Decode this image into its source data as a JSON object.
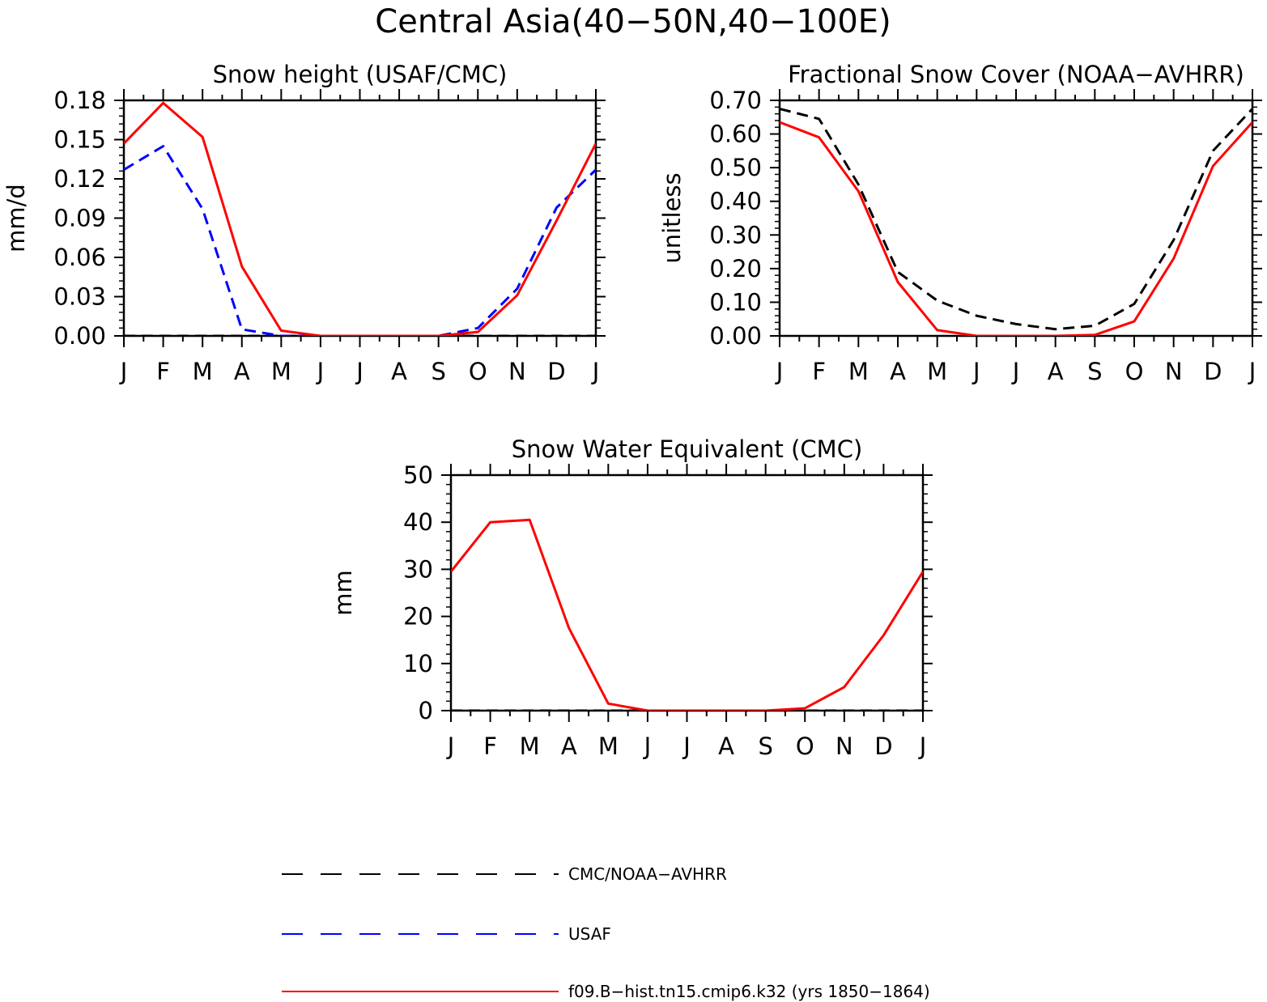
{
  "figure": {
    "title": "Central Asia(40−50N,40−100E)"
  },
  "legend": [
    {
      "label": "CMC/NOAA−AVHRR",
      "color": "#000000",
      "dash": "dashed"
    },
    {
      "label": "USAF",
      "color": "#0000ff",
      "dash": "dashed"
    },
    {
      "label": "f09.B−hist.tn15.cmip6.k32 (yrs 1850−1864)",
      "color": "#ff0000",
      "dash": "solid"
    }
  ],
  "chart_data": [
    {
      "type": "line",
      "title": "Snow height (USAF/CMC)",
      "ylabel": "mm/d",
      "xlabel": "",
      "categories": [
        "J",
        "F",
        "M",
        "A",
        "M",
        "J",
        "J",
        "A",
        "S",
        "O",
        "N",
        "D",
        "J"
      ],
      "ylim": [
        0,
        0.18
      ],
      "yticks": [
        "0.00",
        "0.03",
        "0.06",
        "0.09",
        "0.12",
        "0.15",
        "0.18"
      ],
      "series": [
        {
          "name": "CMC/NOAA−AVHRR",
          "color": "#000000",
          "dash": "dashed",
          "values": [
            0,
            0,
            0,
            0,
            0,
            0,
            0,
            0,
            0,
            0,
            0,
            0,
            0
          ]
        },
        {
          "name": "USAF",
          "color": "#0000ff",
          "dash": "dashed",
          "values": [
            0.127,
            0.145,
            0.097,
            0.005,
            0,
            0,
            0,
            0,
            0,
            0.006,
            0.036,
            0.098,
            0.127
          ]
        },
        {
          "name": "f09.B−hist.tn15.cmip6.k32 (yrs 1850−1864)",
          "color": "#ff0000",
          "dash": "solid",
          "values": [
            0.147,
            0.178,
            0.152,
            0.053,
            0.004,
            0,
            0,
            0,
            0,
            0.003,
            0.031,
            0.088,
            0.147
          ]
        }
      ]
    },
    {
      "type": "line",
      "title": "Fractional Snow Cover (NOAA−AVHRR)",
      "ylabel": "unitless",
      "xlabel": "",
      "categories": [
        "J",
        "F",
        "M",
        "A",
        "M",
        "J",
        "J",
        "A",
        "S",
        "O",
        "N",
        "D",
        "J"
      ],
      "ylim": [
        0,
        0.7
      ],
      "yticks": [
        "0.00",
        "0.10",
        "0.20",
        "0.30",
        "0.40",
        "0.50",
        "0.60",
        "0.70"
      ],
      "series": [
        {
          "name": "CMC/NOAA−AVHRR",
          "color": "#000000",
          "dash": "dashed",
          "values": [
            0.675,
            0.645,
            0.45,
            0.19,
            0.105,
            0.06,
            0.035,
            0.02,
            0.03,
            0.095,
            0.285,
            0.55,
            0.675
          ]
        },
        {
          "name": "f09.B−hist.tn15.cmip6.k32 (yrs 1850−1864)",
          "color": "#ff0000",
          "dash": "solid",
          "values": [
            0.635,
            0.59,
            0.43,
            0.16,
            0.017,
            0,
            0,
            0,
            0.003,
            0.043,
            0.23,
            0.505,
            0.635
          ]
        }
      ]
    },
    {
      "type": "line",
      "title": "Snow Water Equivalent (CMC)",
      "ylabel": "mm",
      "xlabel": "",
      "categories": [
        "J",
        "F",
        "M",
        "A",
        "M",
        "J",
        "J",
        "A",
        "S",
        "O",
        "N",
        "D",
        "J"
      ],
      "ylim": [
        0,
        50
      ],
      "yticks": [
        "0",
        "10",
        "20",
        "30",
        "40",
        "50"
      ],
      "series": [
        {
          "name": "CMC/NOAA−AVHRR",
          "color": "#000000",
          "dash": "dashed",
          "values": [
            0,
            0,
            0,
            0,
            0,
            0,
            0,
            0,
            0,
            0,
            0,
            0,
            0
          ]
        },
        {
          "name": "f09.B−hist.tn15.cmip6.k32 (yrs 1850−1864)",
          "color": "#ff0000",
          "dash": "solid",
          "values": [
            29.5,
            40,
            40.5,
            17.5,
            1.5,
            0,
            0,
            0,
            0,
            0.5,
            5,
            16,
            29.5
          ]
        }
      ]
    }
  ]
}
